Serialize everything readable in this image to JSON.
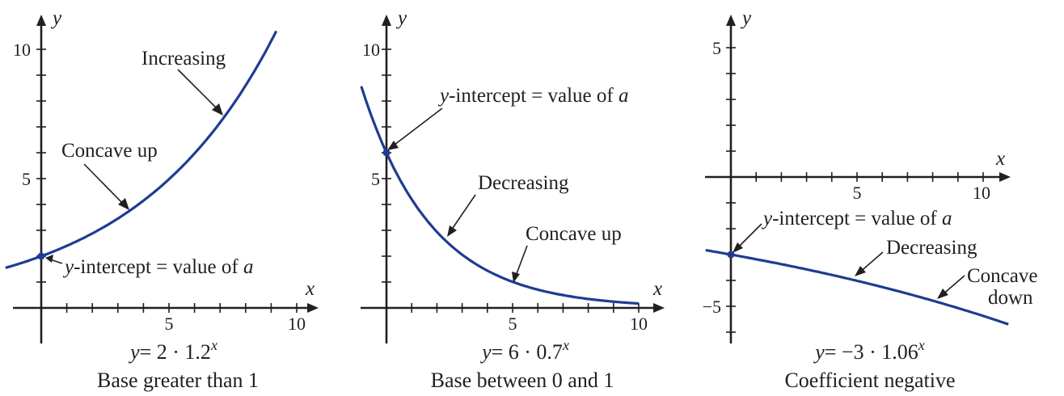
{
  "chart_data": [
    {
      "type": "line",
      "equation": {
        "y": "y",
        "rhs": "= 2 · 1.2",
        "exp": "x"
      },
      "caption": "Base greater than 1",
      "xlabel": "x",
      "ylabel": "y",
      "xlim": [
        -1.5,
        11
      ],
      "ylim": [
        -1.3,
        11.3
      ],
      "xticks": [
        {
          "value": 5,
          "label": "5"
        },
        {
          "value": 10,
          "label": "10"
        }
      ],
      "yticks": [
        {
          "value": 5,
          "label": "5"
        },
        {
          "value": 10,
          "label": "10"
        }
      ],
      "grid": false,
      "series": [
        {
          "a": 2,
          "b": 1.2,
          "x": [
            -1.4,
            9.2
          ]
        }
      ],
      "points": [
        {
          "x": 0,
          "y": 2
        }
      ],
      "annotations": [
        {
          "text": "Increasing",
          "x": 7.1,
          "y": 7.4
        },
        {
          "text": "Concave up",
          "x": 3.5,
          "y": 3.8
        },
        {
          "pre": "y",
          "text": "-intercept = value of ",
          "post": "a",
          "x": 0,
          "y": 2
        }
      ]
    },
    {
      "type": "line",
      "equation": {
        "y": "y",
        "rhs": "= 6 · 0.7",
        "exp": "x"
      },
      "caption": "Base between 0 and 1",
      "xlabel": "x",
      "ylabel": "y",
      "xlim": [
        -1.3,
        11
      ],
      "ylim": [
        -1.3,
        11.3
      ],
      "xticks": [
        {
          "value": 5,
          "label": "5"
        },
        {
          "value": 10,
          "label": "10"
        }
      ],
      "yticks": [
        {
          "value": 5,
          "label": "5"
        },
        {
          "value": 10,
          "label": "10"
        }
      ],
      "grid": false,
      "series": [
        {
          "a": 6,
          "b": 0.7,
          "x": [
            -1.0,
            10.0
          ]
        }
      ],
      "points": [
        {
          "x": 0,
          "y": 6
        }
      ],
      "annotations": [
        {
          "pre": "y",
          "text": "-intercept = value of ",
          "post": "a",
          "x": 0,
          "y": 6
        },
        {
          "text": "Decreasing",
          "x": 2.3,
          "y": 2.8
        },
        {
          "text": "Concave up",
          "x": 5.0,
          "y": 1.0
        }
      ]
    },
    {
      "type": "line",
      "equation": {
        "y": "y",
        "rhs": "= −3 · 1.06",
        "exp": "x"
      },
      "caption": "Coefficient negative",
      "xlabel": "x",
      "ylabel": "y",
      "xlim": [
        -1.3,
        11
      ],
      "ylim": [
        -6.5,
        6.3
      ],
      "xticks": [
        {
          "value": 5,
          "label": "5"
        },
        {
          "value": 10,
          "label": "10"
        }
      ],
      "yticks": [
        {
          "value": 5,
          "label": "5"
        },
        {
          "value": -5,
          "label": "−5"
        }
      ],
      "grid": false,
      "series": [
        {
          "a": -3,
          "b": 1.06,
          "x": [
            -1.0,
            11.0
          ]
        }
      ],
      "points": [
        {
          "x": 0,
          "y": -3
        }
      ],
      "annotations": [
        {
          "pre": "y",
          "text": "-intercept = value of ",
          "post": "a",
          "x": 0,
          "y": -3
        },
        {
          "text": "Decreasing",
          "x": 4.5,
          "y": -3.8
        },
        {
          "text": "Concave",
          "text2": "down",
          "x": 8.5,
          "y": -4.8
        }
      ]
    }
  ]
}
